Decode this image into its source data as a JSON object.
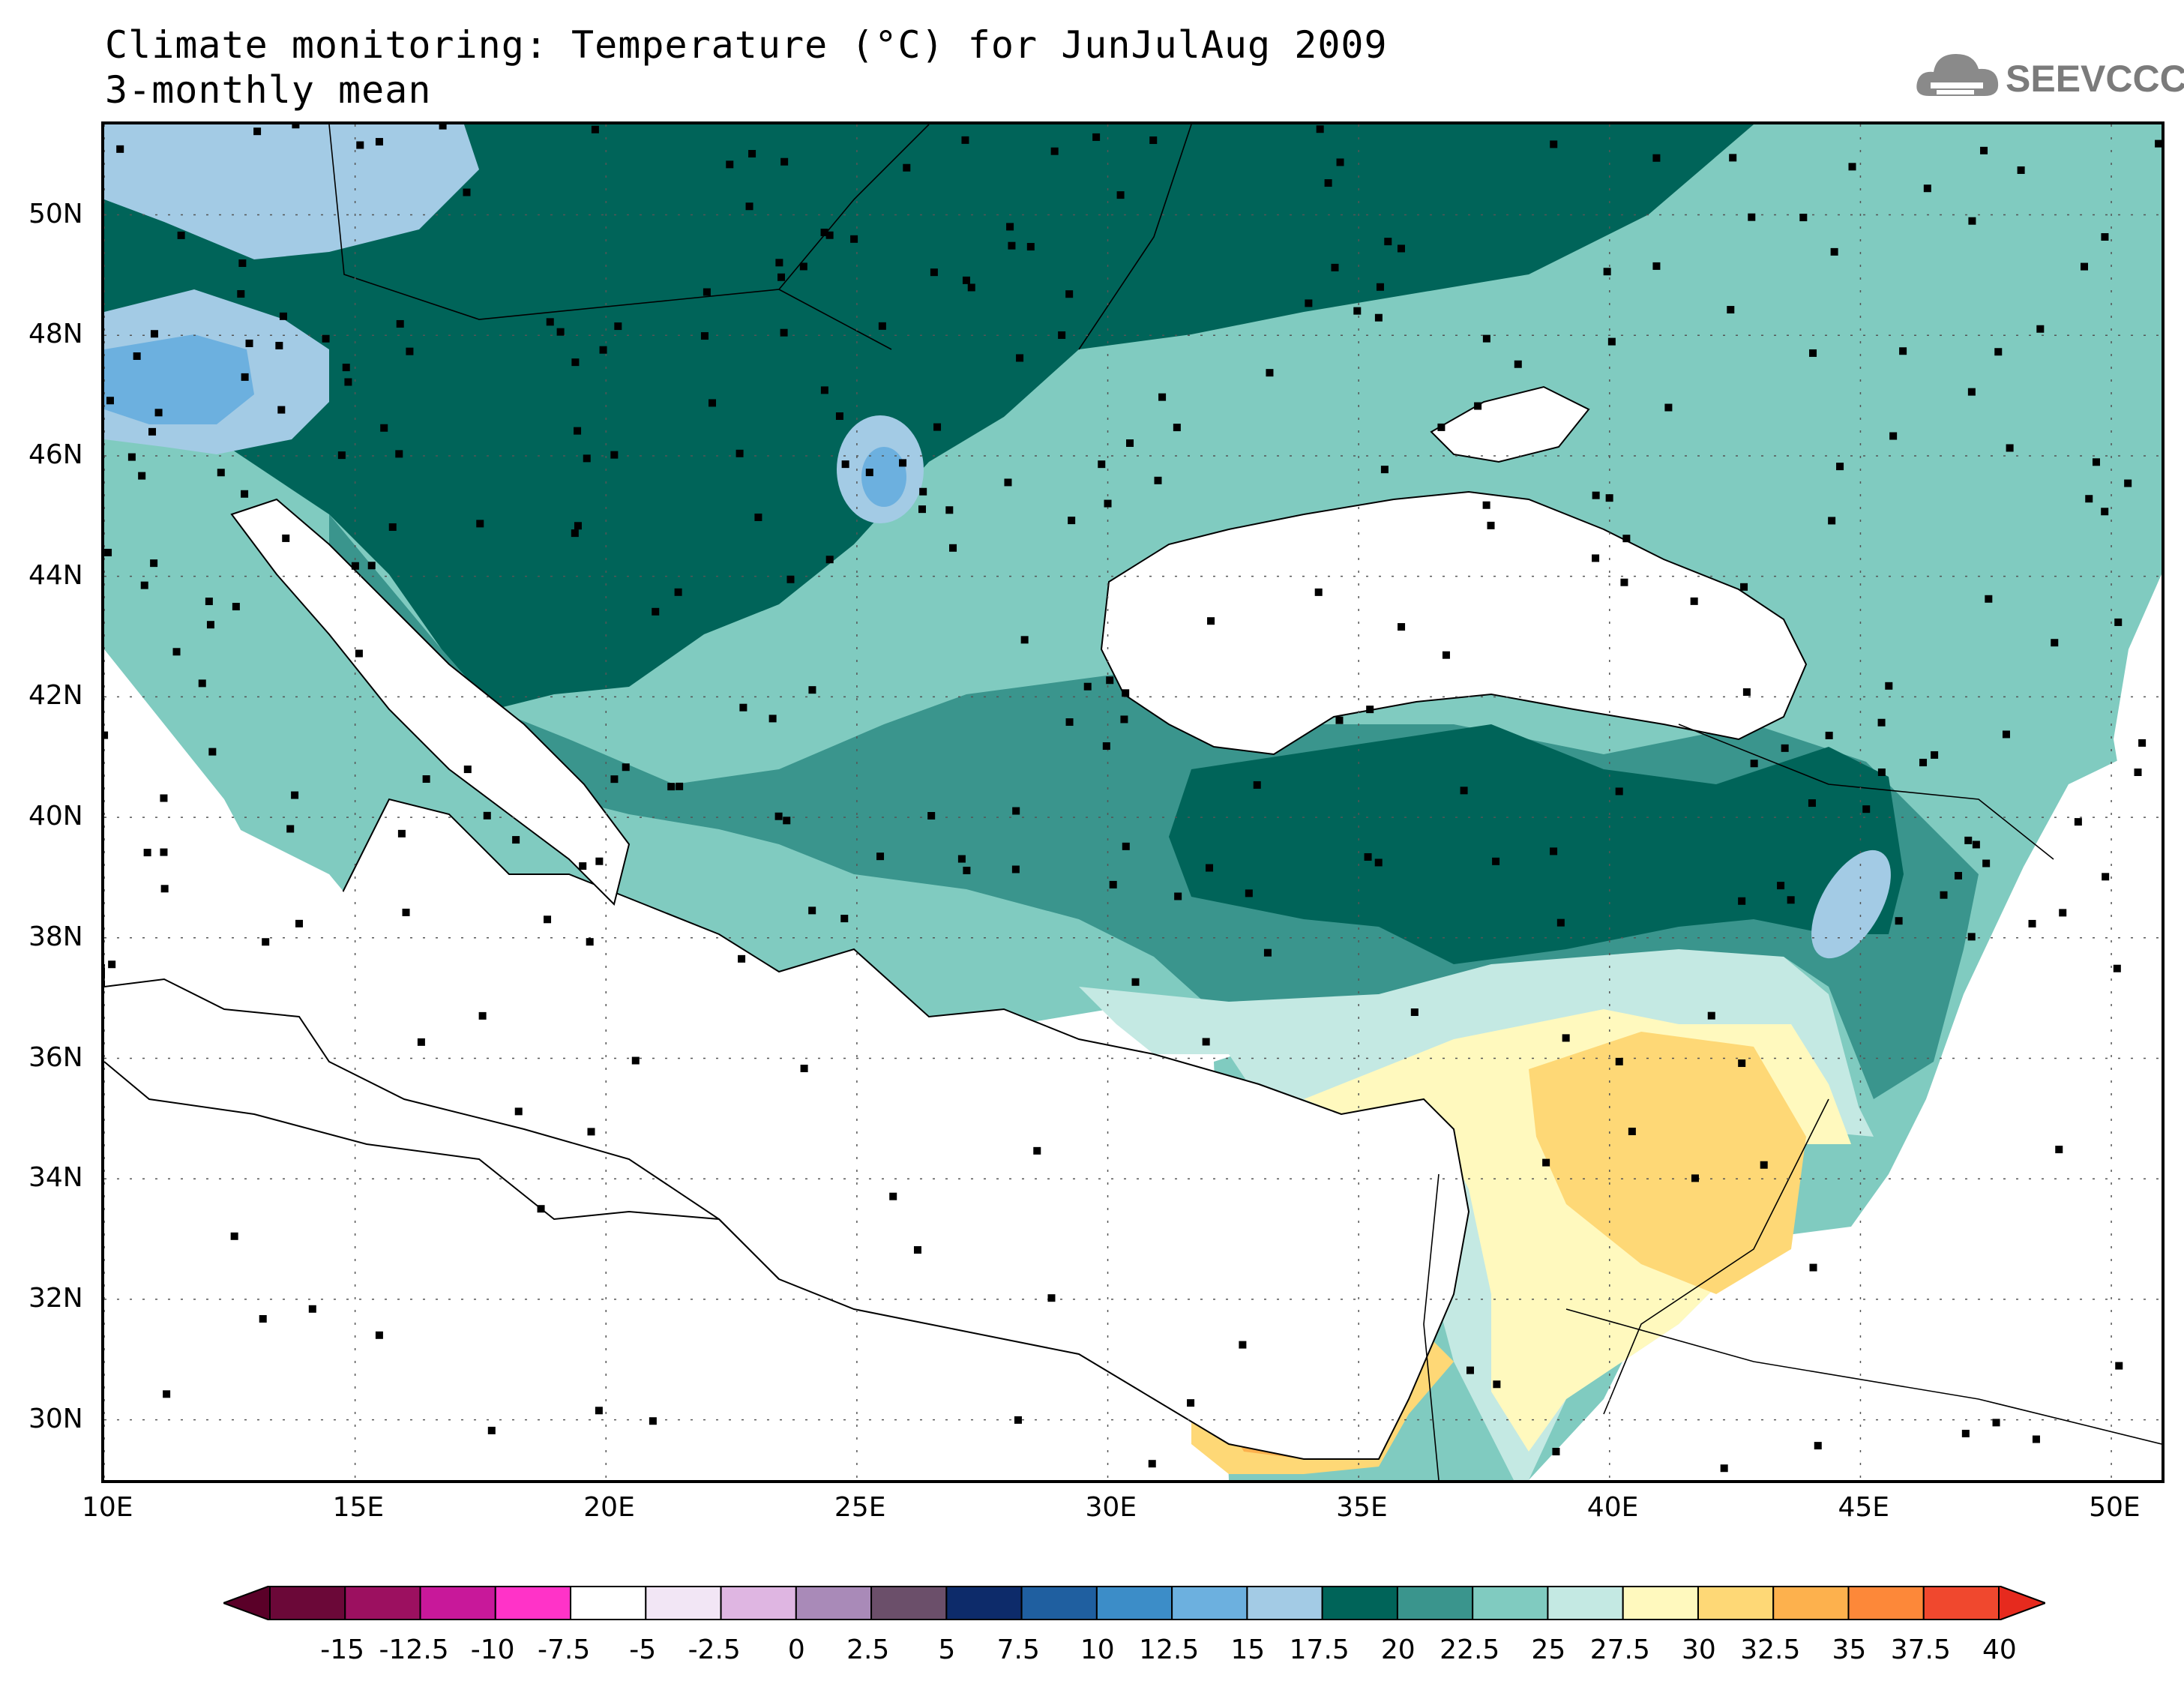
{
  "header": {
    "title_line1": "Climate monitoring: Temperature (°C) for JunJulAug 2009",
    "title_line2": "3-monthly mean"
  },
  "logo": {
    "text": "SEEVCCC",
    "icon": "cloud-icon"
  },
  "map": {
    "lon_range": [
      10,
      51
    ],
    "lat_range": [
      29,
      51.5
    ],
    "lon_ticks": [
      "10E",
      "15E",
      "20E",
      "25E",
      "30E",
      "35E",
      "40E",
      "45E",
      "50E"
    ],
    "lat_ticks": [
      "30N",
      "32N",
      "34N",
      "36N",
      "38N",
      "40N",
      "42N",
      "44N",
      "46N",
      "48N",
      "50N"
    ],
    "gridlines": "dotted"
  },
  "colorbar": {
    "labels": [
      "-15",
      "-12.5",
      "-10",
      "-7.5",
      "-5",
      "-2.5",
      "0",
      "2.5",
      "5",
      "7.5",
      "10",
      "12.5",
      "15",
      "17.5",
      "20",
      "22.5",
      "25",
      "27.5",
      "30",
      "32.5",
      "35",
      "37.5",
      "40"
    ],
    "colors": [
      "#6b0838",
      "#9c1060",
      "#c8189a",
      "#ff33c8",
      "#ffffff",
      "#f2e6f5",
      "#dfb6e2",
      "#a98ab8",
      "#6b4f6a",
      "#0d2b6a",
      "#1f5fa0",
      "#3c8dc8",
      "#6cb0df",
      "#a3cbe5",
      "#006459",
      "#3a958d",
      "#80cbc0",
      "#c4e9e3",
      "#fff9be",
      "#fed876",
      "#fdb14d",
      "#fd8839",
      "#f0482e"
    ],
    "end_low_color": "#5a0028",
    "end_high_color": "#e62a1e"
  }
}
